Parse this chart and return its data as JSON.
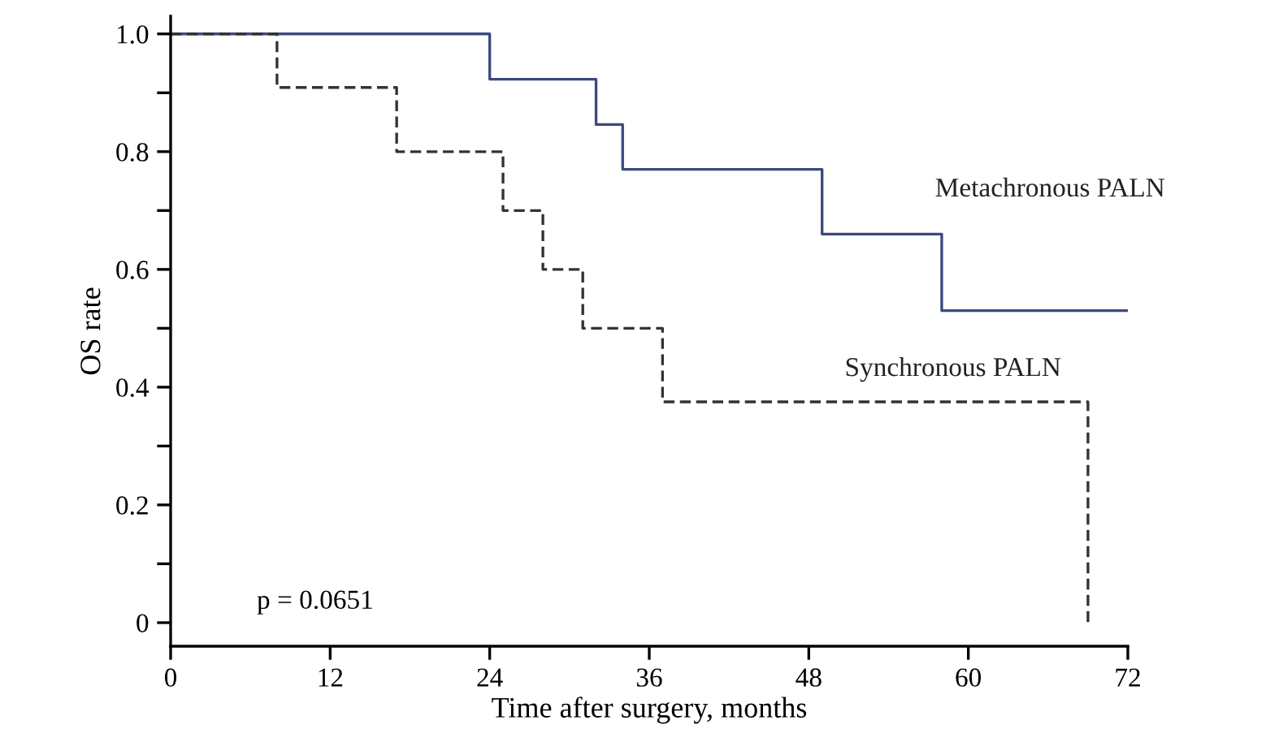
{
  "chart_data": {
    "type": "step",
    "xlabel": "Time after surgery, months",
    "ylabel": "OS rate",
    "series": [
      {
        "name": "Metachronous PALN",
        "color": "#3b4a80",
        "line_style": "solid",
        "x": [
          0,
          24,
          32,
          34,
          49,
          58,
          72
        ],
        "values": [
          1.0,
          0.923,
          0.846,
          0.77,
          0.66,
          0.53,
          0.53
        ]
      },
      {
        "name": "Synchronous PALN",
        "color": "#333333",
        "line_style": "dashed",
        "x": [
          0,
          8,
          17,
          25,
          28,
          31,
          37,
          69,
          69
        ],
        "values": [
          1.0,
          0.909,
          0.8,
          0.7,
          0.6,
          0.5,
          0.375,
          0.375,
          0
        ]
      }
    ],
    "annotations": [
      "p = 0.0651"
    ],
    "xlim": [
      0,
      72
    ],
    "xticks": [
      0,
      12,
      24,
      36,
      48,
      60,
      72
    ],
    "ylim": [
      -0.04,
      1.03
    ],
    "yticks": [
      0,
      {
        "value": 0.1,
        "label": null
      },
      0.2,
      {
        "value": 0.3,
        "label": null
      },
      0.4,
      {
        "value": 0.5,
        "label": null
      },
      0.6,
      {
        "value": 0.7,
        "label": null
      },
      0.8,
      {
        "value": 0.9,
        "label": null
      },
      {
        "value": 1.0,
        "label": "1.0"
      }
    ],
    "grid": false,
    "legend": false,
    "marker": "none"
  }
}
